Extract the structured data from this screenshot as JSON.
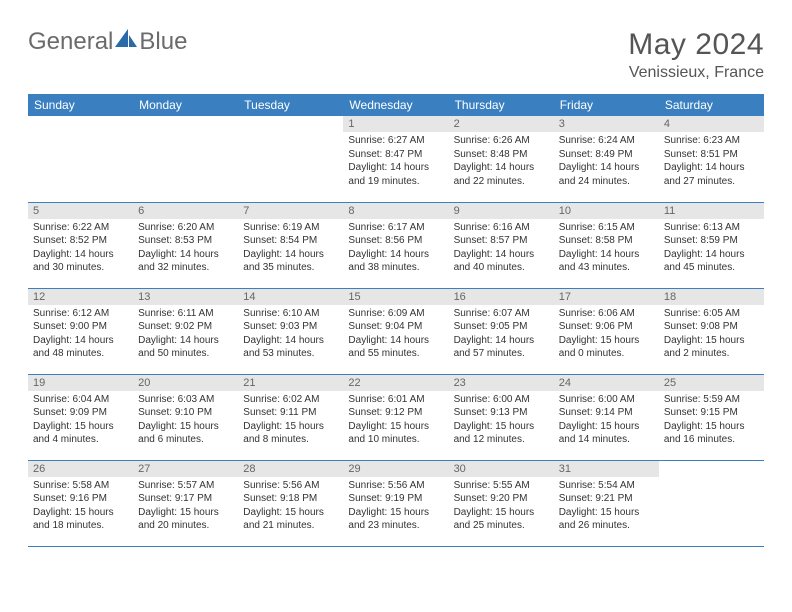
{
  "brand": {
    "part1": "General",
    "part2": "Blue"
  },
  "title": {
    "month": "May 2024",
    "location": "Venissieux, France"
  },
  "style": {
    "header_bg": "#3a7fc0",
    "header_fg": "#ffffff",
    "daynum_bg": "#e6e6e6",
    "border_color": "#3a7fc0",
    "text_color": "#333333",
    "title_color": "#555555",
    "logo_color": "#6b6b6b",
    "tri_color": "#2a6aa8",
    "title_fontsize": 30,
    "loc_fontsize": 16,
    "th_fontsize": 12,
    "daynum_fontsize": 11,
    "detail_fontsize": 10
  },
  "weekdays": [
    "Sunday",
    "Monday",
    "Tuesday",
    "Wednesday",
    "Thursday",
    "Friday",
    "Saturday"
  ],
  "weeks": [
    [
      null,
      null,
      null,
      {
        "n": "1",
        "sr": "Sunrise: 6:27 AM",
        "ss": "Sunset: 8:47 PM",
        "dl": "Daylight: 14 hours and 19 minutes."
      },
      {
        "n": "2",
        "sr": "Sunrise: 6:26 AM",
        "ss": "Sunset: 8:48 PM",
        "dl": "Daylight: 14 hours and 22 minutes."
      },
      {
        "n": "3",
        "sr": "Sunrise: 6:24 AM",
        "ss": "Sunset: 8:49 PM",
        "dl": "Daylight: 14 hours and 24 minutes."
      },
      {
        "n": "4",
        "sr": "Sunrise: 6:23 AM",
        "ss": "Sunset: 8:51 PM",
        "dl": "Daylight: 14 hours and 27 minutes."
      }
    ],
    [
      {
        "n": "5",
        "sr": "Sunrise: 6:22 AM",
        "ss": "Sunset: 8:52 PM",
        "dl": "Daylight: 14 hours and 30 minutes."
      },
      {
        "n": "6",
        "sr": "Sunrise: 6:20 AM",
        "ss": "Sunset: 8:53 PM",
        "dl": "Daylight: 14 hours and 32 minutes."
      },
      {
        "n": "7",
        "sr": "Sunrise: 6:19 AM",
        "ss": "Sunset: 8:54 PM",
        "dl": "Daylight: 14 hours and 35 minutes."
      },
      {
        "n": "8",
        "sr": "Sunrise: 6:17 AM",
        "ss": "Sunset: 8:56 PM",
        "dl": "Daylight: 14 hours and 38 minutes."
      },
      {
        "n": "9",
        "sr": "Sunrise: 6:16 AM",
        "ss": "Sunset: 8:57 PM",
        "dl": "Daylight: 14 hours and 40 minutes."
      },
      {
        "n": "10",
        "sr": "Sunrise: 6:15 AM",
        "ss": "Sunset: 8:58 PM",
        "dl": "Daylight: 14 hours and 43 minutes."
      },
      {
        "n": "11",
        "sr": "Sunrise: 6:13 AM",
        "ss": "Sunset: 8:59 PM",
        "dl": "Daylight: 14 hours and 45 minutes."
      }
    ],
    [
      {
        "n": "12",
        "sr": "Sunrise: 6:12 AM",
        "ss": "Sunset: 9:00 PM",
        "dl": "Daylight: 14 hours and 48 minutes."
      },
      {
        "n": "13",
        "sr": "Sunrise: 6:11 AM",
        "ss": "Sunset: 9:02 PM",
        "dl": "Daylight: 14 hours and 50 minutes."
      },
      {
        "n": "14",
        "sr": "Sunrise: 6:10 AM",
        "ss": "Sunset: 9:03 PM",
        "dl": "Daylight: 14 hours and 53 minutes."
      },
      {
        "n": "15",
        "sr": "Sunrise: 6:09 AM",
        "ss": "Sunset: 9:04 PM",
        "dl": "Daylight: 14 hours and 55 minutes."
      },
      {
        "n": "16",
        "sr": "Sunrise: 6:07 AM",
        "ss": "Sunset: 9:05 PM",
        "dl": "Daylight: 14 hours and 57 minutes."
      },
      {
        "n": "17",
        "sr": "Sunrise: 6:06 AM",
        "ss": "Sunset: 9:06 PM",
        "dl": "Daylight: 15 hours and 0 minutes."
      },
      {
        "n": "18",
        "sr": "Sunrise: 6:05 AM",
        "ss": "Sunset: 9:08 PM",
        "dl": "Daylight: 15 hours and 2 minutes."
      }
    ],
    [
      {
        "n": "19",
        "sr": "Sunrise: 6:04 AM",
        "ss": "Sunset: 9:09 PM",
        "dl": "Daylight: 15 hours and 4 minutes."
      },
      {
        "n": "20",
        "sr": "Sunrise: 6:03 AM",
        "ss": "Sunset: 9:10 PM",
        "dl": "Daylight: 15 hours and 6 minutes."
      },
      {
        "n": "21",
        "sr": "Sunrise: 6:02 AM",
        "ss": "Sunset: 9:11 PM",
        "dl": "Daylight: 15 hours and 8 minutes."
      },
      {
        "n": "22",
        "sr": "Sunrise: 6:01 AM",
        "ss": "Sunset: 9:12 PM",
        "dl": "Daylight: 15 hours and 10 minutes."
      },
      {
        "n": "23",
        "sr": "Sunrise: 6:00 AM",
        "ss": "Sunset: 9:13 PM",
        "dl": "Daylight: 15 hours and 12 minutes."
      },
      {
        "n": "24",
        "sr": "Sunrise: 6:00 AM",
        "ss": "Sunset: 9:14 PM",
        "dl": "Daylight: 15 hours and 14 minutes."
      },
      {
        "n": "25",
        "sr": "Sunrise: 5:59 AM",
        "ss": "Sunset: 9:15 PM",
        "dl": "Daylight: 15 hours and 16 minutes."
      }
    ],
    [
      {
        "n": "26",
        "sr": "Sunrise: 5:58 AM",
        "ss": "Sunset: 9:16 PM",
        "dl": "Daylight: 15 hours and 18 minutes."
      },
      {
        "n": "27",
        "sr": "Sunrise: 5:57 AM",
        "ss": "Sunset: 9:17 PM",
        "dl": "Daylight: 15 hours and 20 minutes."
      },
      {
        "n": "28",
        "sr": "Sunrise: 5:56 AM",
        "ss": "Sunset: 9:18 PM",
        "dl": "Daylight: 15 hours and 21 minutes."
      },
      {
        "n": "29",
        "sr": "Sunrise: 5:56 AM",
        "ss": "Sunset: 9:19 PM",
        "dl": "Daylight: 15 hours and 23 minutes."
      },
      {
        "n": "30",
        "sr": "Sunrise: 5:55 AM",
        "ss": "Sunset: 9:20 PM",
        "dl": "Daylight: 15 hours and 25 minutes."
      },
      {
        "n": "31",
        "sr": "Sunrise: 5:54 AM",
        "ss": "Sunset: 9:21 PM",
        "dl": "Daylight: 15 hours and 26 minutes."
      },
      null
    ]
  ]
}
